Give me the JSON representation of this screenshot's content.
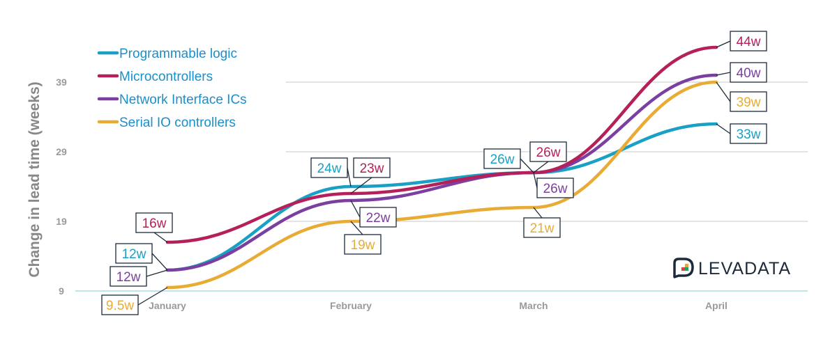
{
  "brand": {
    "name": "LEVADATA"
  },
  "colors": {
    "programmable": "#1aa0c4",
    "micro": "#b5205a",
    "network": "#7a3fa0",
    "serial": "#e8ac35",
    "legend_text": "#1a8fcc"
  },
  "chart_data": {
    "type": "line",
    "title": "",
    "xlabel": "",
    "ylabel": "Change in lead time (weeks)",
    "categories": [
      "January",
      "February",
      "March",
      "April"
    ],
    "y_ticks": [
      9,
      19,
      29,
      39
    ],
    "ylim": [
      9,
      39
    ],
    "smooth": true,
    "legend_position": "top-left",
    "series": [
      {
        "key": "programmable",
        "name": "Programmable logic",
        "values": [
          12,
          24,
          26,
          33
        ],
        "labels": [
          "12w",
          "24w",
          "26w",
          "33w"
        ]
      },
      {
        "key": "micro",
        "name": "Microcontrollers",
        "values": [
          16,
          23,
          26,
          44
        ],
        "labels": [
          "16w",
          "23w",
          "26w",
          "44w"
        ]
      },
      {
        "key": "network",
        "name": "Network Interface ICs",
        "values": [
          12,
          22,
          26,
          40
        ],
        "labels": [
          "12w",
          "22w",
          "26w",
          "40w"
        ]
      },
      {
        "key": "serial",
        "name": "Serial IO controllers",
        "values": [
          9.5,
          19,
          21,
          39
        ],
        "labels": [
          "9.5w",
          "19w",
          "21w",
          "39w"
        ]
      }
    ]
  }
}
